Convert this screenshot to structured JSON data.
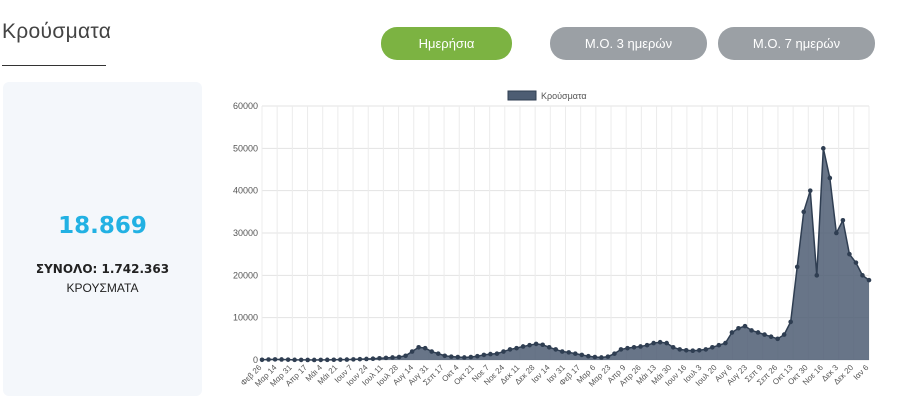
{
  "header": {
    "title": "Κρούσματα"
  },
  "buttons": {
    "daily": "Ημερήσια",
    "ma3": "Μ.Ο. 3 ημερών",
    "ma7": "Μ.Ο. 7 ημερών"
  },
  "stats": {
    "today": "18.869",
    "total": "ΣΥΝΟΛΟ: 1.742.363",
    "label": "ΚΡΟΥΣΜΑΤΑ"
  },
  "colors": {
    "active_button": "#7cb342",
    "inactive_button": "#9ba0a5",
    "series_fill": "#4d5d73",
    "series_line": "#2f3e52",
    "stat_value": "#22b1e3"
  },
  "chart_data": {
    "type": "area",
    "series": [
      {
        "name": "Κρούσματα",
        "values": [
          50,
          120,
          150,
          130,
          80,
          40,
          20,
          15,
          10,
          20,
          40,
          60,
          80,
          100,
          150,
          200,
          250,
          300,
          400,
          500,
          600,
          700,
          1000,
          2000,
          3000,
          2800,
          2000,
          1500,
          1000,
          800,
          700,
          600,
          700,
          900,
          1200,
          1400,
          1500,
          2000,
          2500,
          2800,
          3200,
          3500,
          3800,
          3600,
          3000,
          2500,
          2000,
          1800,
          1500,
          1200,
          900,
          700,
          600,
          800,
          1500,
          2500,
          2800,
          3000,
          3200,
          3500,
          4000,
          4200,
          4000,
          3000,
          2500,
          2300,
          2200,
          2300,
          2500,
          3000,
          3500,
          4000,
          6500,
          7500,
          8000,
          7000,
          6500,
          6000,
          5500,
          5000,
          6000,
          9000,
          22000,
          35000,
          40000,
          20000,
          50000,
          43000,
          30000,
          33000,
          25000,
          23000,
          20000,
          18869
        ]
      }
    ],
    "x_tick_labels": [
      "Φεβ 26",
      "Μαρ 14",
      "Μαρ 31",
      "Απρ 17",
      "Μάι 4",
      "Μάι 21",
      "Ιουν 7",
      "Ιουν 24",
      "Ιουλ 11",
      "Ιουλ 28",
      "Αυγ 14",
      "Αυγ 31",
      "Σεπ 17",
      "Οκτ 4",
      "Οκτ 21",
      "Νοε 7",
      "Νοε 24",
      "Δεκ 11",
      "Δεκ 28",
      "Ιαν 14",
      "Ιαν 31",
      "Φεβ 17",
      "Μαρ 6",
      "Μαρ 23",
      "Απρ 9",
      "Απρ 26",
      "Μάι 13",
      "Μάι 30",
      "Ιουν 16",
      "Ιουλ 3",
      "Ιουλ 20",
      "Αυγ 6",
      "Αυγ 23",
      "Σεπ 9",
      "Σεπ 26",
      "Οκτ 13",
      "Οκτ 30",
      "Νοε 16",
      "Δεκ 3",
      "Δεκ 20",
      "Ιαν 6"
    ],
    "y_ticks": [
      0,
      10000,
      20000,
      30000,
      40000,
      50000,
      60000
    ],
    "ylim": [
      0,
      60000
    ],
    "grid": true,
    "legend_position": "top-center"
  }
}
